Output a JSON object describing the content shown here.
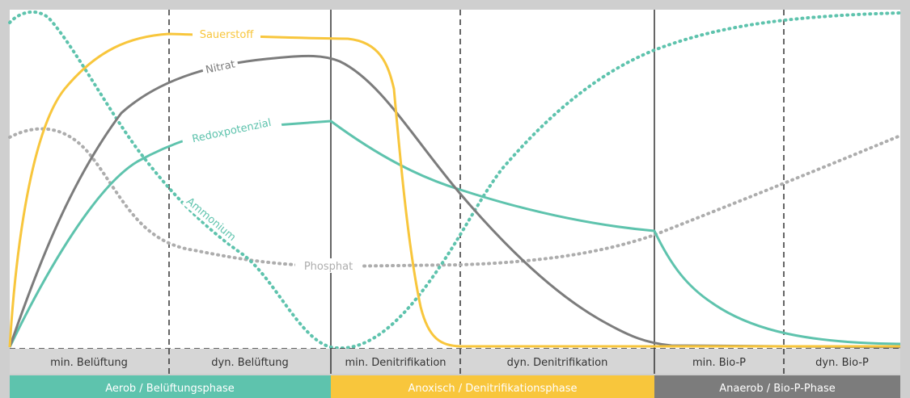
{
  "colors": {
    "frame": "#cfcfcf",
    "sauerstoff": "#f8c63c",
    "nitrat": "#7c7c7c",
    "redox": "#5ec3ad",
    "ammonium": "#5ec3ad",
    "phosphat": "#adadad",
    "subphase_bg": "#d6d6d6",
    "phase_aerob": "#5ec3ad",
    "phase_anoxisch": "#f8c63c",
    "phase_anaerob": "#7c7c7c"
  },
  "curves": {
    "sauerstoff": "Sauerstoff",
    "nitrat": "Nitrat",
    "redox": "Redoxpotenzial",
    "ammonium": "Ammonium",
    "phosphat": "Phosphat"
  },
  "subphases": [
    "min. Belüftung",
    "dyn. Belüftung",
    "min. Denitrifikation",
    "dyn. Denitrifikation",
    "min. Bio-P",
    "dyn. Bio-P"
  ],
  "phases": [
    "Aerob / Belüftungsphase",
    "Anoxisch / Denitrifikationsphase",
    "Anaerob / Bio-P-Phase"
  ]
}
